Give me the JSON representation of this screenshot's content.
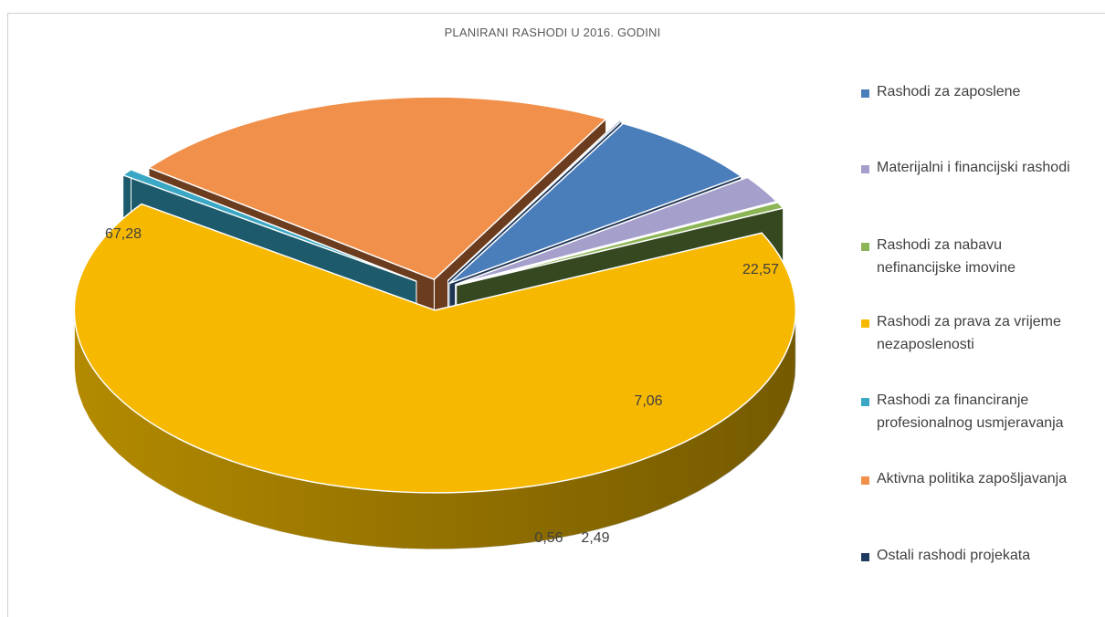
{
  "chart_data": {
    "type": "pie",
    "title": "PLANIRANI RASHODI U 2016. GODINI",
    "categories": [
      "Rashodi za zaposlene",
      "Materijalni i financijski rashodi",
      "Rashodi za nabavu nefinancijske imovine",
      "Rashodi za prava za vrijeme nezaposlenosti",
      "Rashodi za financiranje profesionalnog usmjeravanja",
      "Aktivna politika zapošljavanja",
      "Ostali rashodi projekata"
    ],
    "values": [
      7.06,
      2.49,
      0.56,
      67.28,
      0.6,
      22.57,
      0.1
    ],
    "data_labels": [
      "7,06",
      "2,49",
      "0,56",
      "67,28",
      "",
      "22,57",
      ""
    ],
    "colors": [
      "#4a7ebb",
      "#a5a0cb",
      "#8cb555",
      "#f6b800",
      "#3aa7c4",
      "#f0904a",
      "#1f3a5f"
    ],
    "side_colors": [
      "#1f3554",
      "#4e4656",
      "#35481f",
      "#b38a00",
      "#1d5a6b",
      "#6b3c1e",
      "#1f3a5f"
    ],
    "legend_position": "right",
    "style": "3d-exploded"
  },
  "legend": [
    {
      "label": "Rashodi za zaposlene"
    },
    {
      "label": "Materijalni i financijski rashodi"
    },
    {
      "label": "Rashodi za nabavu nefinancijske imovine"
    },
    {
      "label": "Rashodi za prava za vrijeme nezaposlenosti"
    },
    {
      "label": "Rashodi za financiranje profesionalnog usmjeravanja"
    },
    {
      "label": "Aktivna politika zapošljavanja"
    },
    {
      "label": "Ostali rashodi projekata"
    }
  ]
}
